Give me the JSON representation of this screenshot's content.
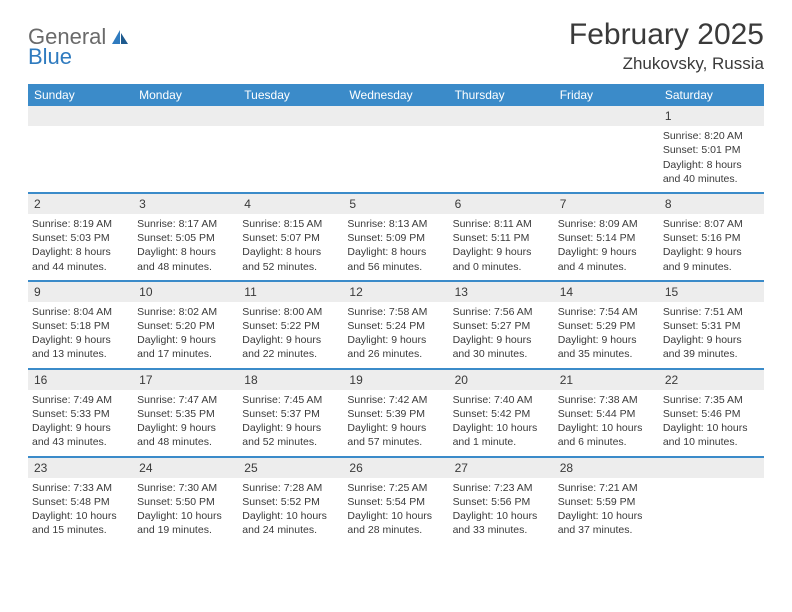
{
  "logo": {
    "word1": "General",
    "word2": "Blue"
  },
  "title": "February 2025",
  "location": "Zhukovsky, Russia",
  "dayNames": [
    "Sunday",
    "Monday",
    "Tuesday",
    "Wednesday",
    "Thursday",
    "Friday",
    "Saturday"
  ],
  "colors": {
    "headerBg": "#3b8bc9",
    "daynumBg": "#ededed",
    "text": "#3a3a3a",
    "logoGray": "#6a6a6a",
    "logoBlue": "#2f7bbf"
  },
  "weeks": [
    [
      {
        "day": "",
        "sunrise": "",
        "sunset": "",
        "daylight": ""
      },
      {
        "day": "",
        "sunrise": "",
        "sunset": "",
        "daylight": ""
      },
      {
        "day": "",
        "sunrise": "",
        "sunset": "",
        "daylight": ""
      },
      {
        "day": "",
        "sunrise": "",
        "sunset": "",
        "daylight": ""
      },
      {
        "day": "",
        "sunrise": "",
        "sunset": "",
        "daylight": ""
      },
      {
        "day": "",
        "sunrise": "",
        "sunset": "",
        "daylight": ""
      },
      {
        "day": "1",
        "sunrise": "Sunrise: 8:20 AM",
        "sunset": "Sunset: 5:01 PM",
        "daylight": "Daylight: 8 hours and 40 minutes."
      }
    ],
    [
      {
        "day": "2",
        "sunrise": "Sunrise: 8:19 AM",
        "sunset": "Sunset: 5:03 PM",
        "daylight": "Daylight: 8 hours and 44 minutes."
      },
      {
        "day": "3",
        "sunrise": "Sunrise: 8:17 AM",
        "sunset": "Sunset: 5:05 PM",
        "daylight": "Daylight: 8 hours and 48 minutes."
      },
      {
        "day": "4",
        "sunrise": "Sunrise: 8:15 AM",
        "sunset": "Sunset: 5:07 PM",
        "daylight": "Daylight: 8 hours and 52 minutes."
      },
      {
        "day": "5",
        "sunrise": "Sunrise: 8:13 AM",
        "sunset": "Sunset: 5:09 PM",
        "daylight": "Daylight: 8 hours and 56 minutes."
      },
      {
        "day": "6",
        "sunrise": "Sunrise: 8:11 AM",
        "sunset": "Sunset: 5:11 PM",
        "daylight": "Daylight: 9 hours and 0 minutes."
      },
      {
        "day": "7",
        "sunrise": "Sunrise: 8:09 AM",
        "sunset": "Sunset: 5:14 PM",
        "daylight": "Daylight: 9 hours and 4 minutes."
      },
      {
        "day": "8",
        "sunrise": "Sunrise: 8:07 AM",
        "sunset": "Sunset: 5:16 PM",
        "daylight": "Daylight: 9 hours and 9 minutes."
      }
    ],
    [
      {
        "day": "9",
        "sunrise": "Sunrise: 8:04 AM",
        "sunset": "Sunset: 5:18 PM",
        "daylight": "Daylight: 9 hours and 13 minutes."
      },
      {
        "day": "10",
        "sunrise": "Sunrise: 8:02 AM",
        "sunset": "Sunset: 5:20 PM",
        "daylight": "Daylight: 9 hours and 17 minutes."
      },
      {
        "day": "11",
        "sunrise": "Sunrise: 8:00 AM",
        "sunset": "Sunset: 5:22 PM",
        "daylight": "Daylight: 9 hours and 22 minutes."
      },
      {
        "day": "12",
        "sunrise": "Sunrise: 7:58 AM",
        "sunset": "Sunset: 5:24 PM",
        "daylight": "Daylight: 9 hours and 26 minutes."
      },
      {
        "day": "13",
        "sunrise": "Sunrise: 7:56 AM",
        "sunset": "Sunset: 5:27 PM",
        "daylight": "Daylight: 9 hours and 30 minutes."
      },
      {
        "day": "14",
        "sunrise": "Sunrise: 7:54 AM",
        "sunset": "Sunset: 5:29 PM",
        "daylight": "Daylight: 9 hours and 35 minutes."
      },
      {
        "day": "15",
        "sunrise": "Sunrise: 7:51 AM",
        "sunset": "Sunset: 5:31 PM",
        "daylight": "Daylight: 9 hours and 39 minutes."
      }
    ],
    [
      {
        "day": "16",
        "sunrise": "Sunrise: 7:49 AM",
        "sunset": "Sunset: 5:33 PM",
        "daylight": "Daylight: 9 hours and 43 minutes."
      },
      {
        "day": "17",
        "sunrise": "Sunrise: 7:47 AM",
        "sunset": "Sunset: 5:35 PM",
        "daylight": "Daylight: 9 hours and 48 minutes."
      },
      {
        "day": "18",
        "sunrise": "Sunrise: 7:45 AM",
        "sunset": "Sunset: 5:37 PM",
        "daylight": "Daylight: 9 hours and 52 minutes."
      },
      {
        "day": "19",
        "sunrise": "Sunrise: 7:42 AM",
        "sunset": "Sunset: 5:39 PM",
        "daylight": "Daylight: 9 hours and 57 minutes."
      },
      {
        "day": "20",
        "sunrise": "Sunrise: 7:40 AM",
        "sunset": "Sunset: 5:42 PM",
        "daylight": "Daylight: 10 hours and 1 minute."
      },
      {
        "day": "21",
        "sunrise": "Sunrise: 7:38 AM",
        "sunset": "Sunset: 5:44 PM",
        "daylight": "Daylight: 10 hours and 6 minutes."
      },
      {
        "day": "22",
        "sunrise": "Sunrise: 7:35 AM",
        "sunset": "Sunset: 5:46 PM",
        "daylight": "Daylight: 10 hours and 10 minutes."
      }
    ],
    [
      {
        "day": "23",
        "sunrise": "Sunrise: 7:33 AM",
        "sunset": "Sunset: 5:48 PM",
        "daylight": "Daylight: 10 hours and 15 minutes."
      },
      {
        "day": "24",
        "sunrise": "Sunrise: 7:30 AM",
        "sunset": "Sunset: 5:50 PM",
        "daylight": "Daylight: 10 hours and 19 minutes."
      },
      {
        "day": "25",
        "sunrise": "Sunrise: 7:28 AM",
        "sunset": "Sunset: 5:52 PM",
        "daylight": "Daylight: 10 hours and 24 minutes."
      },
      {
        "day": "26",
        "sunrise": "Sunrise: 7:25 AM",
        "sunset": "Sunset: 5:54 PM",
        "daylight": "Daylight: 10 hours and 28 minutes."
      },
      {
        "day": "27",
        "sunrise": "Sunrise: 7:23 AM",
        "sunset": "Sunset: 5:56 PM",
        "daylight": "Daylight: 10 hours and 33 minutes."
      },
      {
        "day": "28",
        "sunrise": "Sunrise: 7:21 AM",
        "sunset": "Sunset: 5:59 PM",
        "daylight": "Daylight: 10 hours and 37 minutes."
      },
      {
        "day": "",
        "sunrise": "",
        "sunset": "",
        "daylight": ""
      }
    ]
  ]
}
